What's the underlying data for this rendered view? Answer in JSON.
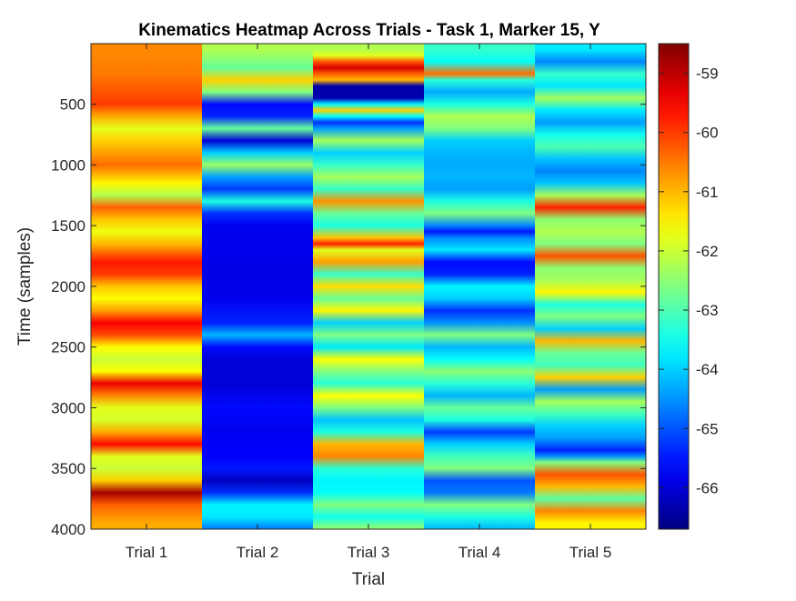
{
  "chart_data": {
    "type": "heatmap",
    "title": "Kinematics Heatmap Across Trials - Task 1, Marker 15, Y",
    "xlabel": "Trial",
    "ylabel": "Time (samples)",
    "ylim": [
      1,
      4000
    ],
    "y_reversed": true,
    "x_categories": [
      "Trial 1",
      "Trial 2",
      "Trial 3",
      "Trial 4",
      "Trial 5"
    ],
    "y_ticks": [
      500,
      1000,
      1500,
      2000,
      2500,
      3000,
      3500,
      4000
    ],
    "y_tick_labels": [
      "500",
      "1000",
      "1500",
      "2000",
      "2500",
      "3000",
      "3500",
      "4000"
    ],
    "colorbar": {
      "colormap": "jet",
      "clim": [
        -66.7,
        -58.5
      ],
      "ticks": [
        -59,
        -60,
        -61,
        -62,
        -63,
        -64,
        -65,
        -66
      ],
      "tick_labels": [
        "-59",
        "-60",
        "-61",
        "-62",
        "-63",
        "-64",
        "-65",
        "-66"
      ]
    },
    "series": [
      {
        "name": "Trial 1",
        "samples": [
          100,
          250,
          400,
          500,
          600,
          700,
          800,
          950,
          1000,
          1150,
          1250,
          1350,
          1450,
          1550,
          1650,
          1800,
          1900,
          2000,
          2100,
          2200,
          2300,
          2400,
          2500,
          2600,
          2700,
          2800,
          2900,
          3000,
          3100,
          3200,
          3300,
          3400,
          3500,
          3600,
          3700,
          3800,
          3950
        ],
        "values": [
          -60.6,
          -60.5,
          -60.2,
          -60.0,
          -60.9,
          -61.8,
          -61.2,
          -60.6,
          -60.4,
          -61.5,
          -62.2,
          -60.3,
          -61.1,
          -61.7,
          -61.0,
          -59.7,
          -60.0,
          -61.1,
          -61.6,
          -60.8,
          -59.5,
          -60.1,
          -61.6,
          -62.0,
          -61.6,
          -59.4,
          -60.6,
          -61.8,
          -61.9,
          -60.9,
          -59.6,
          -61.8,
          -62.0,
          -61.2,
          -58.8,
          -60.3,
          -60.9
        ]
      },
      {
        "name": "Trial 2",
        "samples": [
          50,
          200,
          300,
          400,
          500,
          600,
          700,
          800,
          900,
          1000,
          1100,
          1200,
          1300,
          1400,
          1500,
          1700,
          1900,
          2100,
          2300,
          2400,
          2500,
          2600,
          2800,
          3000,
          3200,
          3400,
          3500,
          3600,
          3700,
          3800,
          3900,
          4000
        ],
        "values": [
          -62.2,
          -62.8,
          -61.2,
          -62.6,
          -65.6,
          -65.4,
          -62.8,
          -66.0,
          -64.0,
          -62.4,
          -64.4,
          -65.2,
          -63.4,
          -65.3,
          -65.8,
          -65.8,
          -65.9,
          -65.8,
          -65.4,
          -64.2,
          -65.6,
          -66.0,
          -66.0,
          -65.6,
          -65.8,
          -65.7,
          -65.5,
          -66.2,
          -65.3,
          -63.7,
          -63.8,
          -64.7
        ]
      },
      {
        "name": "Trial 3",
        "samples": [
          50,
          100,
          150,
          200,
          250,
          300,
          350,
          450,
          500,
          550,
          600,
          650,
          700,
          800,
          900,
          1000,
          1100,
          1200,
          1300,
          1400,
          1500,
          1600,
          1650,
          1700,
          1800,
          1900,
          2000,
          2100,
          2200,
          2300,
          2400,
          2500,
          2600,
          2700,
          2800,
          2900,
          3000,
          3100,
          3200,
          3300,
          3400,
          3500,
          3600,
          3700,
          3800,
          3900,
          4000
        ],
        "values": [
          -62.2,
          -61.8,
          -60.2,
          -59.2,
          -60.3,
          -61.0,
          -66.4,
          -66.3,
          -63.7,
          -61.2,
          -63.6,
          -65.3,
          -64.4,
          -62.3,
          -64.0,
          -63.2,
          -62.3,
          -63.2,
          -60.7,
          -62.8,
          -63.4,
          -61.1,
          -59.8,
          -61.8,
          -60.8,
          -63.2,
          -61.3,
          -62.8,
          -61.5,
          -64.0,
          -62.6,
          -63.8,
          -61.6,
          -62.6,
          -63.3,
          -61.6,
          -62.6,
          -64.1,
          -63.4,
          -61.0,
          -60.6,
          -63.3,
          -63.7,
          -63.6,
          -62.6,
          -63.5,
          -62.4
        ]
      },
      {
        "name": "Trial 4",
        "samples": [
          50,
          150,
          250,
          300,
          400,
          500,
          600,
          700,
          800,
          900,
          1000,
          1100,
          1200,
          1300,
          1400,
          1500,
          1550,
          1600,
          1700,
          1800,
          1900,
          2000,
          2100,
          2200,
          2300,
          2400,
          2500,
          2600,
          2700,
          2800,
          2900,
          3000,
          3100,
          3200,
          3300,
          3400,
          3500,
          3600,
          3700,
          3800,
          3900,
          4000
        ],
        "values": [
          -63.2,
          -63.6,
          -60.4,
          -63.3,
          -64.3,
          -63.4,
          -62.2,
          -62.6,
          -64.0,
          -64.2,
          -64.3,
          -64.2,
          -64.4,
          -63.4,
          -62.6,
          -64.6,
          -65.5,
          -64.6,
          -63.8,
          -65.6,
          -65.4,
          -63.7,
          -64.0,
          -65.3,
          -64.5,
          -62.6,
          -64.2,
          -63.6,
          -62.5,
          -63.3,
          -64.2,
          -62.8,
          -63.4,
          -65.2,
          -64.0,
          -63.1,
          -62.6,
          -65.0,
          -64.7,
          -62.6,
          -63.4,
          -64.2
        ]
      },
      {
        "name": "Trial 5",
        "samples": [
          50,
          150,
          250,
          350,
          450,
          550,
          650,
          750,
          850,
          950,
          1050,
          1150,
          1250,
          1350,
          1450,
          1550,
          1650,
          1750,
          1850,
          1950,
          2050,
          2150,
          2250,
          2350,
          2450,
          2550,
          2650,
          2750,
          2850,
          2950,
          3050,
          3150,
          3250,
          3350,
          3400,
          3450,
          3550,
          3650,
          3750,
          3850,
          3950
        ],
        "values": [
          -63.8,
          -64.6,
          -63.2,
          -63.8,
          -62.3,
          -63.8,
          -64.4,
          -63.5,
          -63.0,
          -64.1,
          -64.6,
          -64.1,
          -62.3,
          -59.8,
          -62.5,
          -62.2,
          -62.6,
          -60.2,
          -62.5,
          -62.3,
          -61.5,
          -63.4,
          -62.6,
          -64.0,
          -61.0,
          -62.8,
          -63.1,
          -61.2,
          -64.4,
          -62.3,
          -63.1,
          -64.0,
          -64.4,
          -65.4,
          -64.5,
          -62.6,
          -60.2,
          -61.0,
          -62.9,
          -60.6,
          -61.5
        ]
      }
    ]
  }
}
